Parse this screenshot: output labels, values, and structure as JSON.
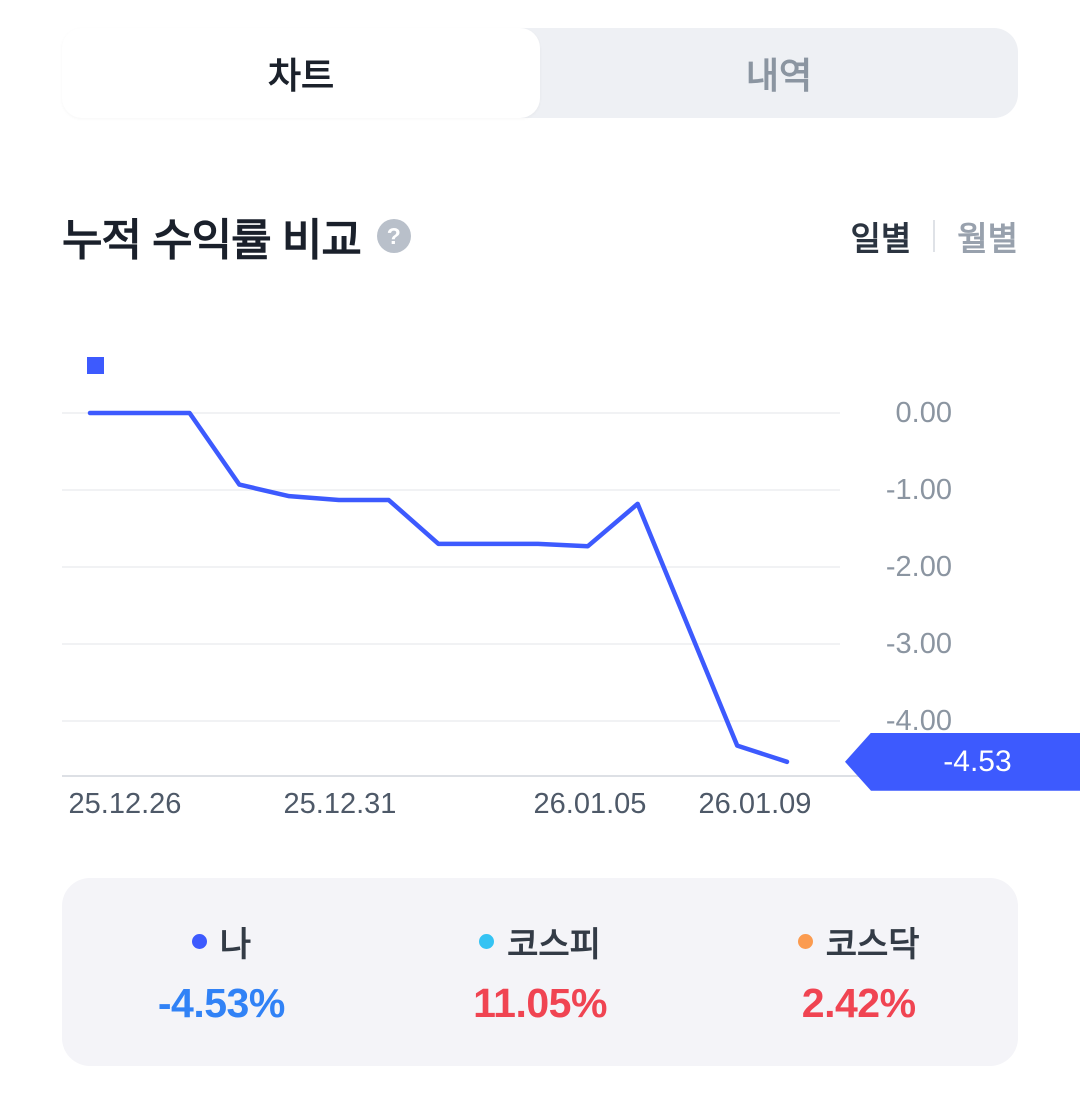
{
  "tabs": [
    {
      "label": "차트"
    },
    {
      "label": "내역"
    }
  ],
  "section": {
    "title": "누적 수익률 비교",
    "help_glyph": "?"
  },
  "period": {
    "daily": "일별",
    "monthly": "월별"
  },
  "chart_data": {
    "type": "line",
    "title": "누적 수익률 비교",
    "unit": "%",
    "grid": true,
    "ylim": [
      -4.9,
      0.9
    ],
    "series": [
      {
        "name": "나",
        "color": "#3d5afe",
        "values": [
          0,
          0,
          0,
          -0.93,
          -1.08,
          -1.13,
          -1.13,
          -1.7,
          -1.7,
          -1.7,
          -1.73,
          -1.18,
          -2.75,
          -4.32,
          -4.53
        ]
      }
    ],
    "y_ticks": [
      {
        "value": 0,
        "label": "0.00"
      },
      {
        "value": -1,
        "label": "-1.00"
      },
      {
        "value": -2,
        "label": "-2.00"
      },
      {
        "value": -3,
        "label": "-3.00"
      },
      {
        "value": -4,
        "label": "-4.00"
      }
    ],
    "x_ticks": [
      "25.12.26",
      "25.12.31",
      "26.01.05",
      "26.01.09"
    ],
    "badge": {
      "label": "-4.53",
      "color": "#3d5afe",
      "text_color": "#ffffff"
    }
  },
  "legend": {
    "items": [
      {
        "label": "나",
        "dot_color": "#3d5afe",
        "value": "-4.53%",
        "value_color": "#3182f6"
      },
      {
        "label": "코스피",
        "dot_color": "#35c3f3",
        "value": "11.05%",
        "value_color": "#f04452"
      },
      {
        "label": "코스닥",
        "dot_color": "#fb9b50",
        "value": "2.42%",
        "value_color": "#f04452"
      }
    ]
  }
}
